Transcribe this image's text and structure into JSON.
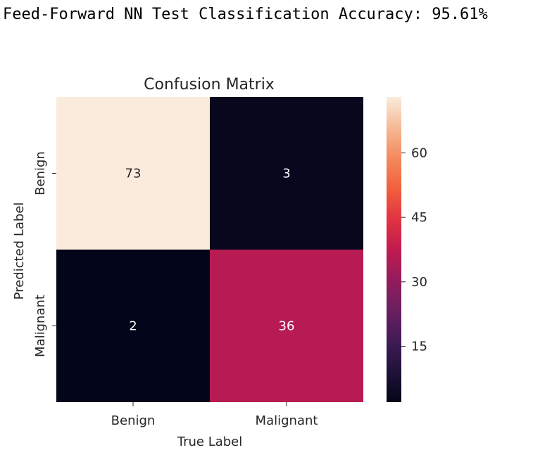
{
  "header": {
    "text": "Feed-Forward NN Test Classification Accuracy: 95.61%"
  },
  "chart_data": {
    "type": "heatmap",
    "title": "Confusion Matrix",
    "xlabel": "True Label",
    "ylabel": "Predicted Label",
    "x_categories": [
      "Benign",
      "Malignant"
    ],
    "y_categories": [
      "Benign",
      "Malignant"
    ],
    "values": [
      [
        73,
        3
      ],
      [
        2,
        36
      ]
    ],
    "colorbar": {
      "ticks": [
        15,
        30,
        45,
        60
      ],
      "range": [
        2,
        73
      ],
      "colormap": "rocket"
    }
  }
}
